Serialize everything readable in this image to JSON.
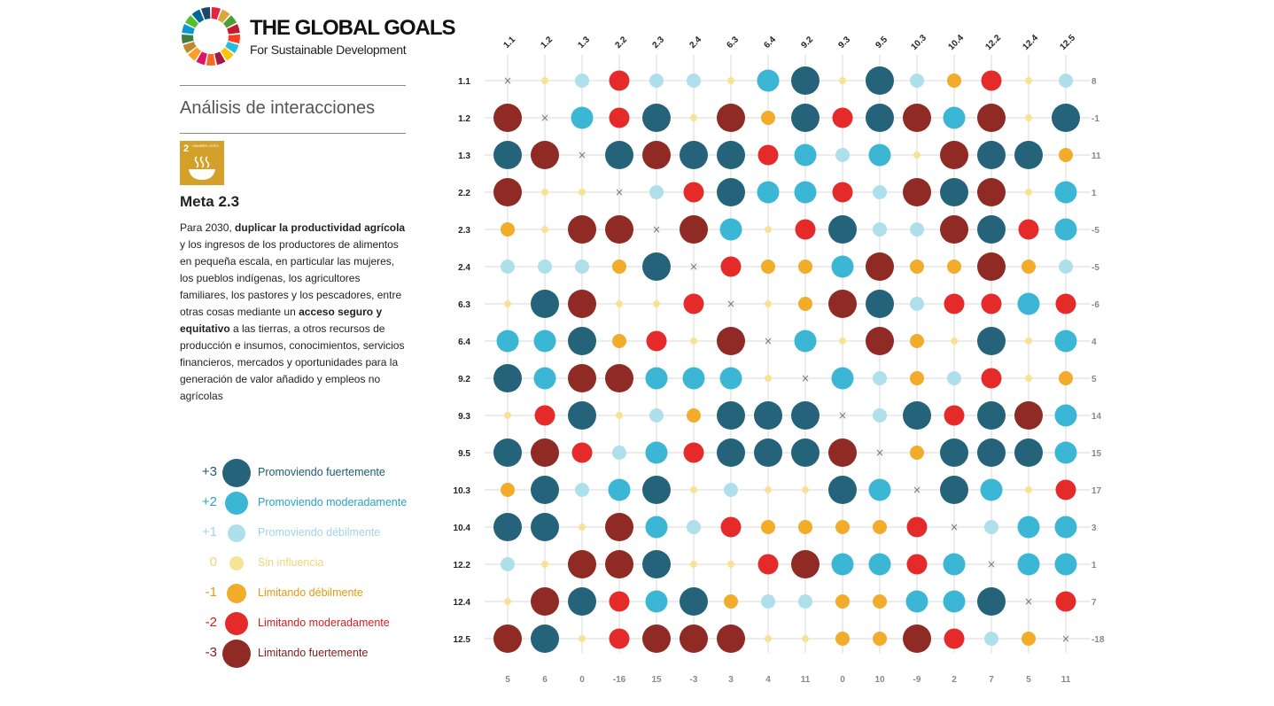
{
  "brand": {
    "title": "THE GLOBAL GOALS",
    "subtitle": "For Sustainable Development"
  },
  "section_title": "Análisis de interacciones",
  "goal_tile": {
    "number": "2",
    "label": "HAMBRE CERO",
    "color": "#d3a029"
  },
  "target": {
    "title": "Meta 2.3",
    "description_parts": [
      {
        "text": "Para 2030, ",
        "bold": false
      },
      {
        "text": "duplicar la productividad agrícola",
        "bold": true
      },
      {
        "text": " y los ingresos de los productores de alimentos en pequeña escala, en particular las mujeres, los pueblos indígenas, los agricultores familiares, los pastores y los pescadores, entre otras cosas mediante un ",
        "bold": false
      },
      {
        "text": "acceso seguro y equitativo",
        "bold": true
      },
      {
        "text": " a las tierras, a otros recursos de producción e insumos, conocimientos, servicios financieros, mercados y oportunidades para la generación de valor añadido y empleos no agrícolas",
        "bold": false
      }
    ]
  },
  "legend": [
    {
      "value": "+3",
      "label": "Promoviendo fuertemente",
      "color": "#24637a",
      "text_color": "#1f5a70"
    },
    {
      "value": "+2",
      "label": "Promoviendo moderadamente",
      "color": "#3bb6d4",
      "text_color": "#2aa3c2"
    },
    {
      "value": "+1",
      "label": "Promoviendo débilmente",
      "color": "#aee0ec",
      "text_color": "#9fd6e4"
    },
    {
      "value": "0",
      "label": "Sin influencia",
      "color": "#f7e394",
      "text_color": "#efd57a"
    },
    {
      "value": "-1",
      "label": "Limitando débilmente",
      "color": "#f2ac2a",
      "text_color": "#e19a14"
    },
    {
      "value": "-2",
      "label": "Limitando moderadamente",
      "color": "#e52a2a",
      "text_color": "#d11f1f"
    },
    {
      "value": "-3",
      "label": "Limitando fuertemente",
      "color": "#8f2a25",
      "text_color": "#7d211d"
    }
  ],
  "chart_data": {
    "type": "heatmap",
    "columns": [
      "1.1",
      "1.2",
      "1.3",
      "2.2",
      "2.3",
      "2.4",
      "6.3",
      "6.4",
      "9.2",
      "9.3",
      "9.5",
      "10.3",
      "10.4",
      "12.2",
      "12.4",
      "12.5"
    ],
    "rows": [
      "1.1",
      "1.2",
      "1.3",
      "2.2",
      "2.3",
      "2.4",
      "6.3",
      "6.4",
      "9.2",
      "9.3",
      "9.5",
      "10.3",
      "10.4",
      "12.2",
      "12.4",
      "12.5"
    ],
    "values": [
      [
        null,
        0,
        1,
        -2,
        1,
        1,
        0,
        2,
        3,
        0,
        3,
        1,
        -1,
        -2,
        0,
        1
      ],
      [
        -3,
        null,
        2,
        -2,
        3,
        0,
        -3,
        -1,
        3,
        -2,
        3,
        -3,
        2,
        -3,
        0,
        3
      ],
      [
        3,
        -3,
        null,
        3,
        -3,
        3,
        3,
        -2,
        2,
        1,
        2,
        0,
        -3,
        3,
        3,
        -1
      ],
      [
        -3,
        0,
        0,
        null,
        1,
        -2,
        3,
        2,
        2,
        -2,
        1,
        -3,
        3,
        -3,
        0,
        2
      ],
      [
        -1,
        0,
        -3,
        -3,
        null,
        -3,
        2,
        0,
        -2,
        3,
        1,
        1,
        -3,
        3,
        -2,
        2
      ],
      [
        1,
        1,
        1,
        -1,
        3,
        null,
        -2,
        -1,
        -1,
        2,
        -3,
        -1,
        -1,
        -3,
        -1,
        1
      ],
      [
        0,
        3,
        -3,
        0,
        0,
        -2,
        null,
        0,
        -1,
        -3,
        3,
        1,
        -2,
        -2,
        2,
        -2
      ],
      [
        2,
        2,
        3,
        -1,
        -2,
        0,
        -3,
        null,
        2,
        0,
        -3,
        -1,
        0,
        3,
        0,
        2
      ],
      [
        3,
        2,
        -3,
        -3,
        2,
        2,
        2,
        0,
        null,
        2,
        1,
        -1,
        1,
        -2,
        0,
        -1
      ],
      [
        0,
        -2,
        3,
        0,
        1,
        -1,
        3,
        3,
        3,
        null,
        1,
        3,
        -2,
        3,
        -3,
        2
      ],
      [
        3,
        -3,
        -2,
        1,
        2,
        -2,
        3,
        3,
        3,
        -3,
        null,
        -1,
        3,
        3,
        3,
        2
      ],
      [
        -1,
        3,
        1,
        2,
        3,
        0,
        1,
        0,
        0,
        3,
        2,
        null,
        3,
        2,
        0,
        -2
      ],
      [
        3,
        3,
        0,
        -3,
        2,
        1,
        -2,
        -1,
        -1,
        -1,
        -1,
        -2,
        null,
        1,
        2,
        2
      ],
      [
        1,
        0,
        -3,
        -3,
        3,
        0,
        0,
        -2,
        -3,
        2,
        2,
        -2,
        2,
        null,
        2,
        2
      ],
      [
        0,
        -3,
        3,
        -2,
        2,
        3,
        -1,
        1,
        1,
        -1,
        -1,
        2,
        2,
        3,
        null,
        -2
      ],
      [
        -3,
        3,
        0,
        -2,
        -3,
        -3,
        -3,
        0,
        0,
        -1,
        -1,
        -3,
        -2,
        1,
        -1,
        null
      ]
    ],
    "row_totals": [
      8,
      -1,
      11,
      1,
      -5,
      -5,
      -6,
      4,
      5,
      14,
      15,
      17,
      3,
      1,
      7,
      -18
    ],
    "column_totals": [
      5,
      6,
      0,
      -16,
      15,
      -3,
      3,
      4,
      11,
      0,
      10,
      -9,
      2,
      7,
      5,
      11
    ],
    "diagonal_marker": "×",
    "scale_colors": {
      "3": "#24637a",
      "2": "#3bb6d4",
      "1": "#aee0ec",
      "0": "#f7e394",
      "-1": "#f2ac2a",
      "-2": "#e52a2a",
      "-3": "#8f2a25"
    }
  }
}
